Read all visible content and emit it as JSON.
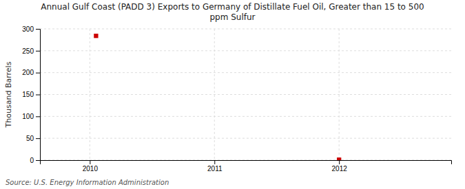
{
  "chart_data": {
    "type": "scatter",
    "title": "Annual Gulf Coast (PADD 3) Exports to Germany of Distillate Fuel Oil, Greater than 15 to 500\nppm Sulfur",
    "ylabel": "Thousand Barrels",
    "source": "Source: U.S. Energy Information Administration",
    "x": [
      2010.05,
      2012.0
    ],
    "values": [
      284,
      1
    ],
    "color": "#cc0000",
    "marker": "square",
    "xlim": [
      2009.6,
      2012.9
    ],
    "ylim": [
      0,
      300
    ],
    "xticks": [
      2010,
      2011,
      2012
    ],
    "yticks": [
      0,
      50,
      100,
      150,
      200,
      250,
      300
    ],
    "grid": true
  }
}
